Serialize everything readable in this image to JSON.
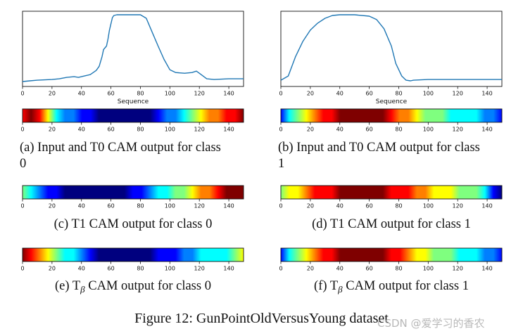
{
  "figure": {
    "caption": "Figure 12: GunPointOldVersusYoung dataset",
    "watermark": "CSDN @爱学习的香农"
  },
  "axis": {
    "xticks": [
      "0",
      "20",
      "40",
      "60",
      "80",
      "100",
      "120",
      "140"
    ],
    "x_values": [
      0,
      20,
      40,
      60,
      80,
      100,
      120,
      140
    ],
    "xlim": [
      0,
      150
    ],
    "xlabel": "Sequence"
  },
  "colors": {
    "line": "#1f77b4",
    "jet": [
      "#00007f",
      "#0000ff",
      "#007fff",
      "#00ffff",
      "#7fff7f",
      "#ffff00",
      "#ff7f00",
      "#ff0000",
      "#7f0000"
    ]
  },
  "chart_data": [
    {
      "id": "series-class0",
      "type": "line",
      "title": "",
      "xlabel": "Sequence",
      "ylabel": "",
      "xlim": [
        0,
        150
      ],
      "ylim": [
        0,
        1
      ],
      "x": [
        0,
        5,
        10,
        20,
        25,
        30,
        35,
        38,
        42,
        46,
        50,
        52,
        54,
        55,
        57,
        58,
        59,
        61,
        62,
        64,
        70,
        80,
        84,
        88,
        92,
        96,
        100,
        104,
        110,
        115,
        118,
        120,
        125,
        130,
        140,
        150
      ],
      "y": [
        0.04,
        0.05,
        0.06,
        0.07,
        0.08,
        0.1,
        0.11,
        0.1,
        0.12,
        0.14,
        0.2,
        0.26,
        0.4,
        0.5,
        0.55,
        0.65,
        0.78,
        0.96,
        0.99,
        1.0,
        1.0,
        1.0,
        0.95,
        0.75,
        0.55,
        0.36,
        0.21,
        0.17,
        0.16,
        0.17,
        0.19,
        0.16,
        0.08,
        0.07,
        0.08,
        0.08
      ]
    },
    {
      "id": "series-class1",
      "type": "line",
      "title": "",
      "xlabel": "Sequence",
      "ylabel": "",
      "xlim": [
        0,
        150
      ],
      "ylim": [
        0,
        1
      ],
      "x": [
        0,
        5,
        10,
        15,
        20,
        25,
        30,
        35,
        40,
        50,
        60,
        65,
        70,
        75,
        78,
        82,
        85,
        88,
        90,
        100,
        110,
        120,
        140,
        150
      ],
      "y": [
        0.06,
        0.12,
        0.4,
        0.62,
        0.78,
        0.88,
        0.95,
        0.99,
        1.0,
        1.0,
        0.98,
        0.93,
        0.8,
        0.55,
        0.3,
        0.12,
        0.06,
        0.05,
        0.06,
        0.07,
        0.07,
        0.07,
        0.07,
        0.07
      ]
    }
  ],
  "panels": [
    {
      "id": "a",
      "caption_line1": "(a)  Input and T0 CAM output for class",
      "caption_line2": "0",
      "cam": [
        0.85,
        0.95,
        0.85,
        0.6,
        0.4,
        0.3,
        0.2,
        0.15,
        0.1,
        0.05,
        0.02,
        0,
        0,
        0,
        0.02,
        0.05,
        0.1,
        0.2,
        0.3,
        0.42,
        0.55,
        0.65,
        0.72,
        0.78,
        0.85,
        0.92,
        1.0
      ]
    },
    {
      "id": "b",
      "caption_line1": "(b)  Input and T0 CAM output for class",
      "caption_line2": "1",
      "cam": [
        0.15,
        0.35,
        0.5,
        0.62,
        0.72,
        0.82,
        0.9,
        0.95,
        0.98,
        1.0,
        1.0,
        0.98,
        0.95,
        0.9,
        0.8,
        0.72,
        0.62,
        0.55,
        0.5,
        0.45,
        0.42,
        0.4,
        0.37,
        0.33,
        0.27,
        0.2,
        0.1
      ]
    },
    {
      "id": "c",
      "caption": "(c)  T1 CAM output for class 0",
      "cam": [
        0.55,
        0.42,
        0.25,
        0.12,
        0.08,
        0.06,
        0.04,
        0.02,
        0.02,
        0.02,
        0.02,
        0.04,
        0.06,
        0.1,
        0.18,
        0.3,
        0.4,
        0.42,
        0.48,
        0.55,
        0.62,
        0.72,
        0.8,
        0.88,
        0.95,
        1.0,
        1.0
      ]
    },
    {
      "id": "d",
      "caption": "(d)  T1 CAM output for class 1",
      "cam": [
        0.45,
        0.58,
        0.68,
        0.75,
        0.82,
        0.88,
        0.92,
        0.96,
        0.98,
        1.0,
        1.0,
        0.98,
        0.95,
        0.92,
        0.88,
        0.82,
        0.78,
        0.72,
        0.66,
        0.62,
        0.58,
        0.55,
        0.52,
        0.45,
        0.32,
        0.18,
        0.05
      ]
    },
    {
      "id": "e",
      "caption_prefix": "(e)  T",
      "caption_sub": "β",
      "caption_suffix": " CAM output for class 0",
      "cam": [
        0.95,
        0.85,
        0.72,
        0.6,
        0.5,
        0.42,
        0.35,
        0.25,
        0.12,
        0.05,
        0.02,
        0,
        0,
        0,
        0.02,
        0.05,
        0.08,
        0.12,
        0.16,
        0.22,
        0.28,
        0.32,
        0.35,
        0.38,
        0.42,
        0.52,
        0.65
      ]
    },
    {
      "id": "f",
      "caption_prefix": "(f)  T",
      "caption_sub": "β",
      "caption_suffix": " CAM output for class 1",
      "cam": [
        0.15,
        0.35,
        0.5,
        0.62,
        0.72,
        0.82,
        0.9,
        0.95,
        0.98,
        1.0,
        1.0,
        0.98,
        0.95,
        0.9,
        0.82,
        0.74,
        0.66,
        0.6,
        0.55,
        0.5,
        0.46,
        0.42,
        0.38,
        0.33,
        0.27,
        0.2,
        0.08
      ]
    }
  ]
}
